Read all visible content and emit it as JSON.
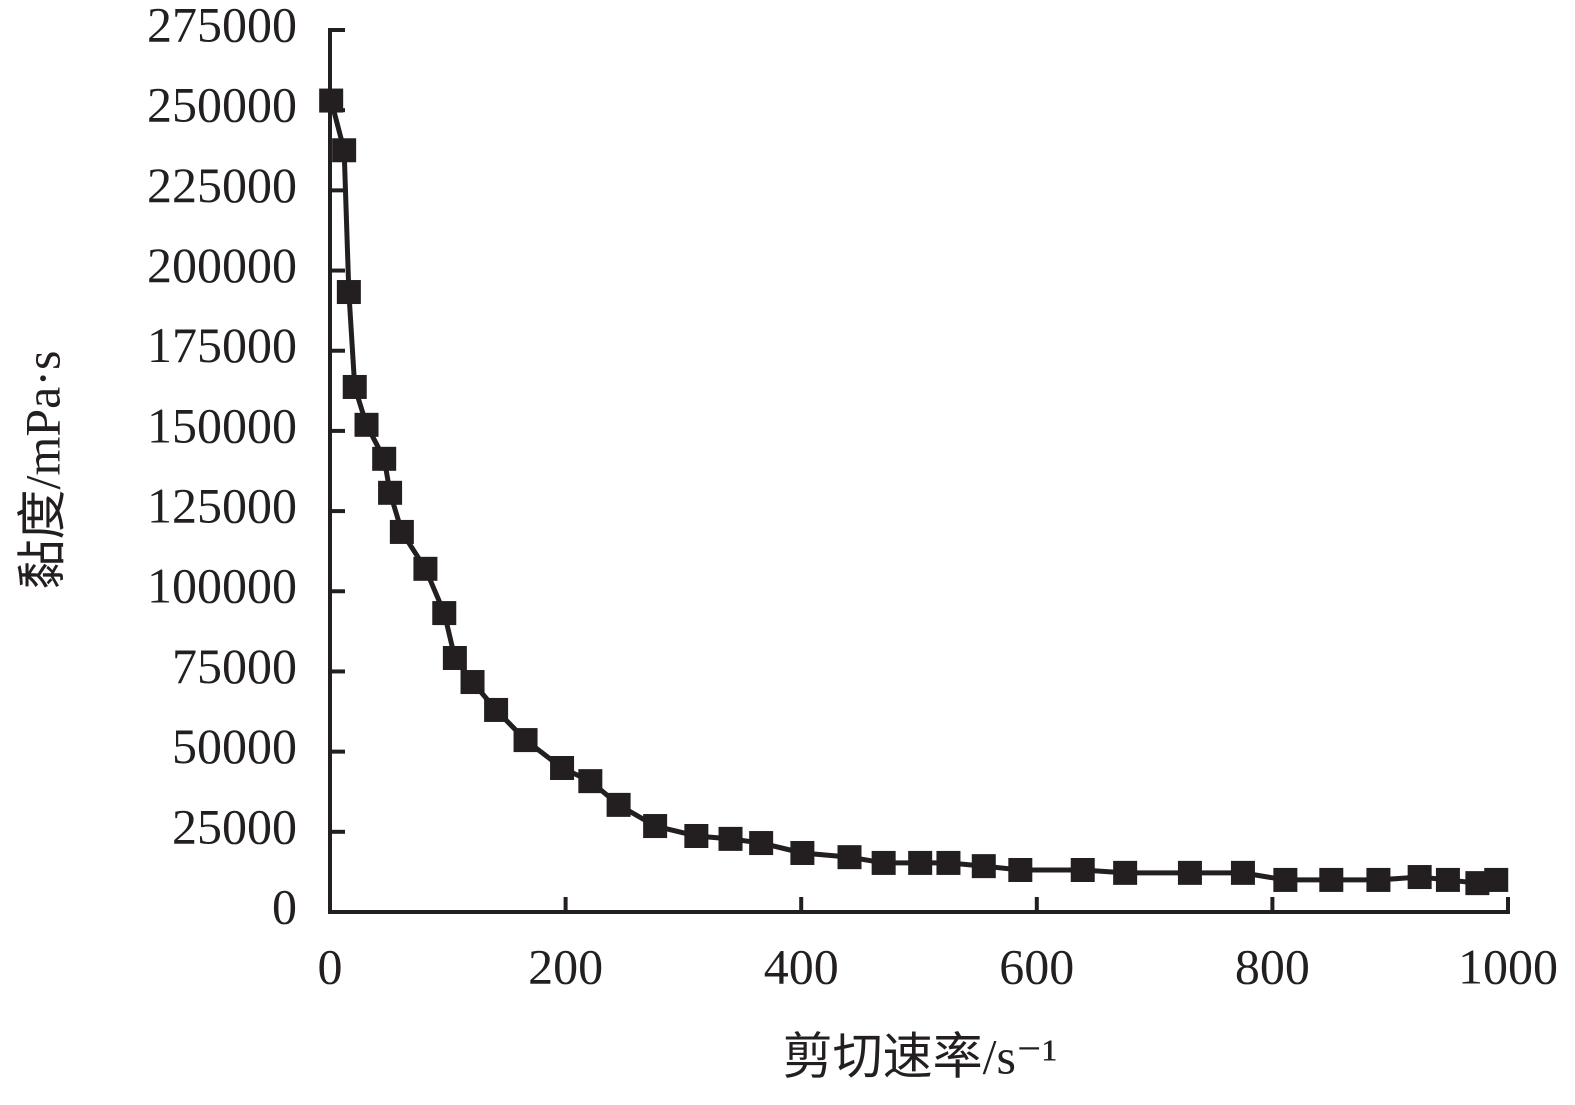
{
  "chart_data": {
    "type": "line",
    "ylabel": "黏度/mPa·s",
    "xlabel": "剪切速率/s⁻¹",
    "x": [
      1,
      12,
      16,
      21,
      31,
      46,
      51,
      61,
      81,
      97,
      106,
      121,
      141,
      166,
      197,
      221,
      245,
      276,
      311,
      340,
      366,
      401,
      441,
      470,
      501,
      525,
      555,
      586,
      639,
      675,
      730,
      775,
      811,
      850,
      890,
      925,
      949,
      974,
      990
    ],
    "values": [
      253000,
      237500,
      193300,
      163700,
      151900,
      141300,
      130700,
      118500,
      107000,
      93200,
      79200,
      71700,
      63000,
      53600,
      44900,
      40800,
      33400,
      26800,
      23700,
      22800,
      21500,
      18400,
      17100,
      15300,
      15300,
      15300,
      14300,
      13100,
      13100,
      12200,
      12200,
      12200,
      10000,
      10000,
      10000,
      10900,
      10000,
      9000,
      10000
    ],
    "color": "#231f20",
    "marker": "square",
    "xlim": [
      0,
      1000
    ],
    "xticks": [
      0,
      200,
      400,
      600,
      800,
      1000
    ],
    "ylim": [
      0,
      275000
    ],
    "yticks": [
      0,
      25000,
      50000,
      75000,
      100000,
      125000,
      150000,
      175000,
      200000,
      225000,
      250000,
      275000
    ],
    "grid": false
  }
}
